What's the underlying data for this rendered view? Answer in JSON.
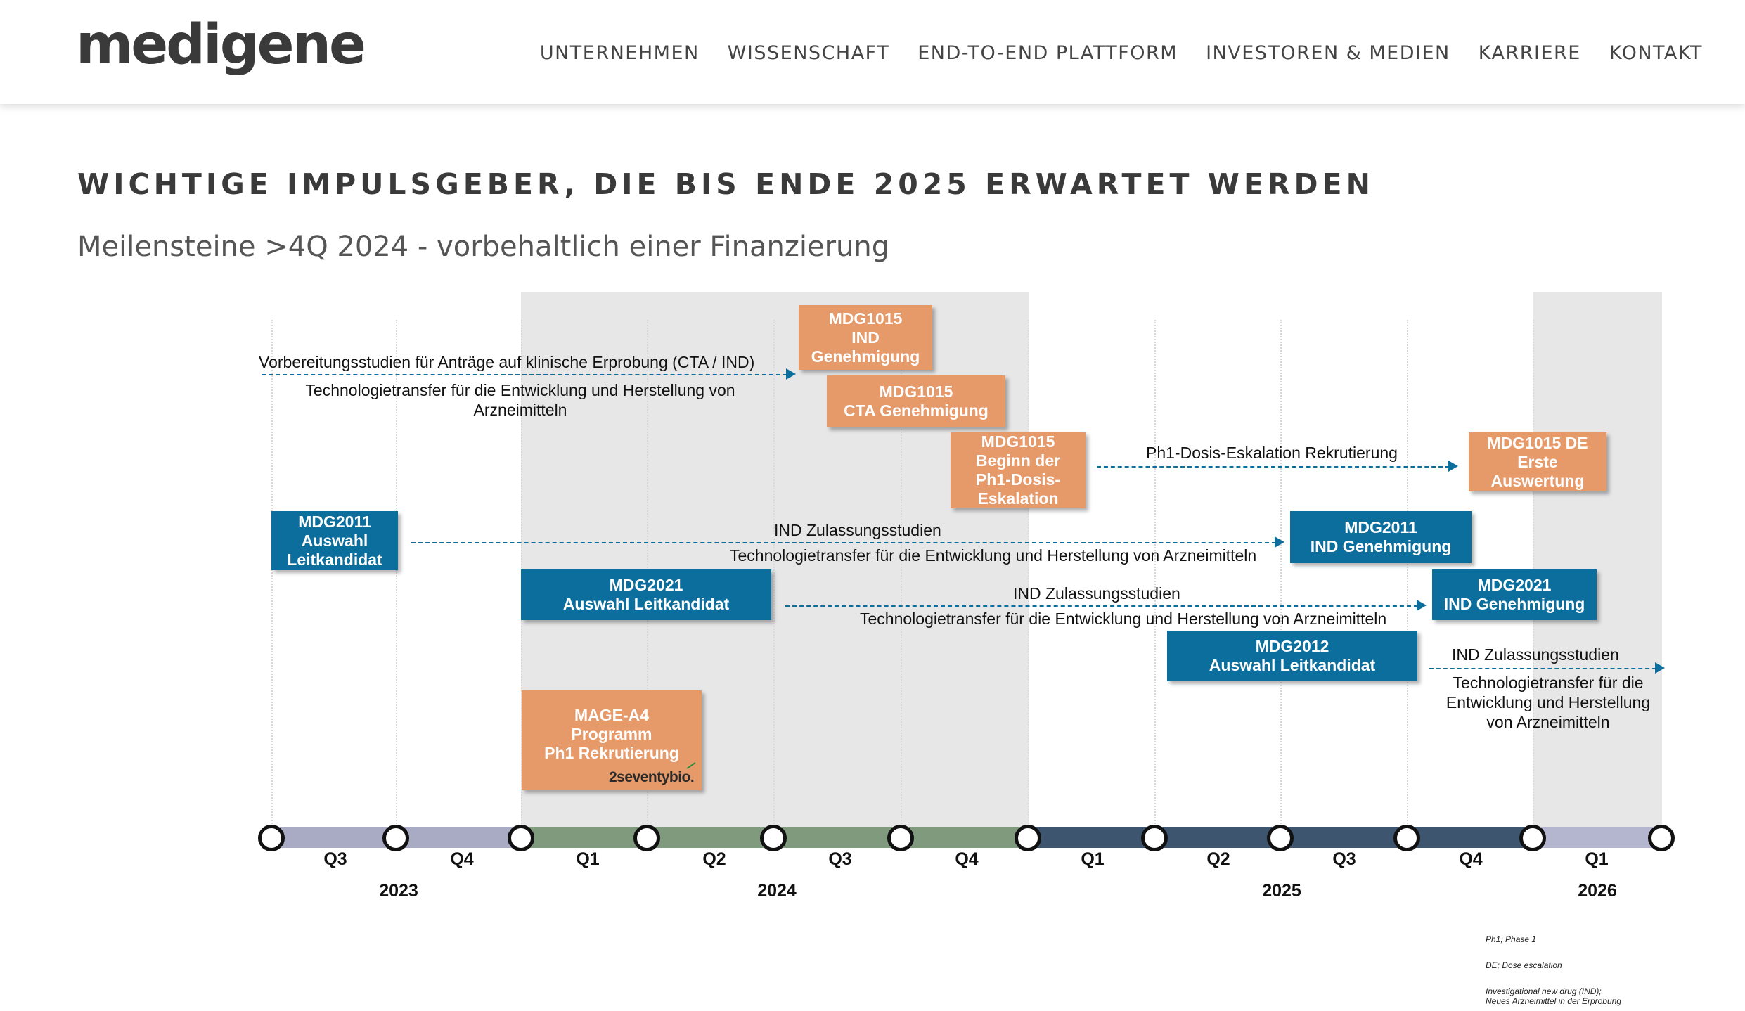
{
  "header": {
    "logo": "medigene",
    "nav": [
      "UNTERNEHMEN",
      "WISSENSCHAFT",
      "END-TO-END PLATTFORM",
      "INVESTOREN & MEDIEN",
      "KARRIERE",
      "KONTAKT"
    ]
  },
  "page": {
    "title": "WICHTIGE IMPULSGEBER, DIE BIS ENDE 2025 ERWARTET WERDEN",
    "subtitle": "Meilensteine >4Q 2024 - vorbehaltlich einer Finanzierung"
  },
  "timeline": {
    "quarters": [
      "Q3",
      "Q4",
      "Q1",
      "Q2",
      "Q3",
      "Q4",
      "Q1",
      "Q2",
      "Q3",
      "Q4",
      "Q1"
    ],
    "years": [
      "2023",
      "2024",
      "2025",
      "2026"
    ],
    "colors": {
      "bar_2023": "#a9aac4",
      "bar_2024": "#7f9a7c",
      "bar_2025": "#3e5570",
      "bar_2026": "#b4b5cf",
      "orange": "#e69a6a",
      "blue": "#0c6e9d"
    }
  },
  "milestones": {
    "mdg1015_ind": "MDG1015\nIND\nGenehmigung",
    "mdg1015_cta": "MDG1015\nCTA Genehmigung",
    "mdg1015_beginn": "MDG1015\nBeginn der\nPh1-Dosis-\nEskalation",
    "mdg1015_de": "MDG1015 DE\nErste\nAuswertung",
    "mdg2011_auswahl": "MDG2011\nAuswahl\nLeitkandidat",
    "mdg2011_ind": "MDG2011\nIND Genehmigung",
    "mdg2021_auswahl": "MDG2021\nAuswahl Leitkandidat",
    "mdg2021_ind": "MDG2021\nIND Genehmigung",
    "mdg2012_auswahl": "MDG2012\nAuswahl Leitkandidat",
    "mage_a4": "MAGE-A4\nProgramm\nPh1 Rekrutierung"
  },
  "labels": {
    "vorbereitung": "Vorbereitungsstudien für Anträge auf klinische Erprobung (CTA / IND)",
    "techtransfer1": "Technologietransfer für die Entwicklung und Herstellung von\nArzneimitteln",
    "ph1": "Ph1-Dosis-Eskalation Rekrutierung",
    "ind_studien_1": "IND Zulassungsstudien",
    "techtransfer2": "Technologietransfer für die Entwicklung und Herstellung von Arzneimitteln",
    "ind_studien_2": "IND Zulassungsstudien",
    "techtransfer3": "Technologietransfer für die Entwicklung und Herstellung von Arzneimitteln",
    "ind_studien_3": "IND Zulassungsstudien",
    "techtransfer4": "Technologietransfer für die\nEntwicklung und Herstellung\nvon Arzneimitteln"
  },
  "partner": "2seventybio.",
  "footnotes": {
    "ph1": "Ph1; Phase 1",
    "de": "DE; Dose escalation",
    "ind": "Investigational new drug (IND);\nNeues Arzneimittel in der Erprobung"
  }
}
